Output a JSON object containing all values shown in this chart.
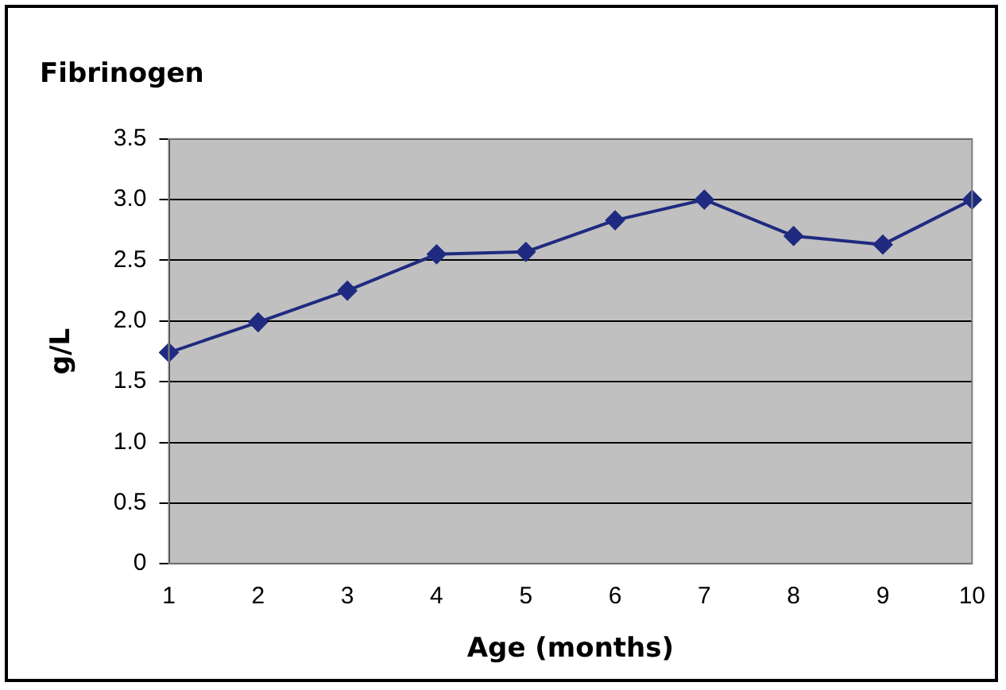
{
  "chart_data": {
    "type": "line",
    "title": "Fibrinogen",
    "xlabel": "Age (months)",
    "ylabel": "g/L",
    "categories": [
      "1",
      "2",
      "3",
      "4",
      "5",
      "6",
      "7",
      "8",
      "9",
      "10"
    ],
    "series": [
      {
        "color": "#1f2a80",
        "values": [
          1.74,
          1.99,
          2.25,
          2.55,
          2.57,
          2.83,
          3.0,
          2.7,
          2.63,
          3.0
        ]
      }
    ],
    "ylim": [
      0,
      3.5
    ],
    "yticks": [
      0,
      {
        "value": 0.5,
        "label": "0.5"
      },
      {
        "value": 1,
        "label": "1.0"
      },
      {
        "value": 1.5,
        "label": "1.5"
      },
      {
        "value": 2,
        "label": "2.0"
      },
      {
        "value": 2.5,
        "label": "2.5"
      },
      {
        "value": 3,
        "label": "3.0"
      },
      {
        "value": 3.5,
        "label": "3.5"
      }
    ],
    "grid": "y",
    "marker": "diamond",
    "line_style": "solid",
    "legend": false
  }
}
